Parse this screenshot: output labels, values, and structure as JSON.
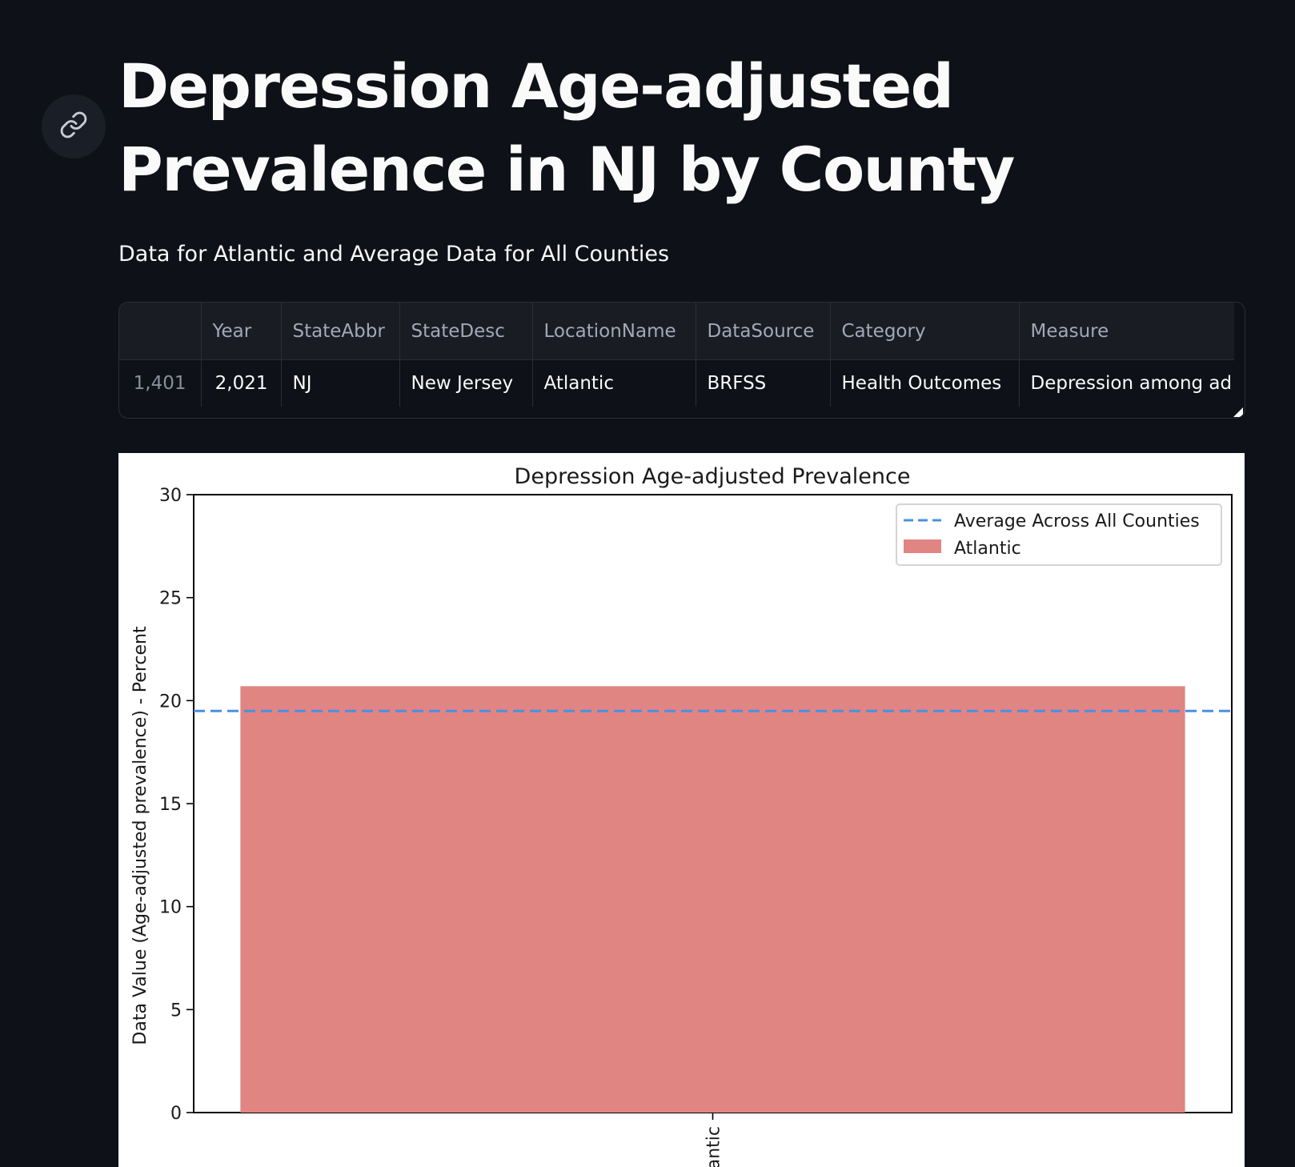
{
  "page": {
    "title": "Depression Age-adjusted Prevalence in NJ by County",
    "subtitle": "Data for Atlantic and Average Data for All Counties",
    "link_icon": "link-icon"
  },
  "table": {
    "columns": [
      "",
      "Year",
      "StateAbbr",
      "StateDesc",
      "LocationName",
      "DataSource",
      "Category",
      "Measure"
    ],
    "rows": [
      [
        "1,401",
        "2,021",
        "NJ",
        "New Jersey",
        "Atlantic",
        "BRFSS",
        "Health Outcomes",
        "Depression among ad"
      ]
    ]
  },
  "chart_data": {
    "type": "bar",
    "title": "Depression Age-adjusted Prevalence",
    "xlabel": "",
    "ylabel": "Data Value (Age-adjusted prevalence) - Percent",
    "categories": [
      "Atlantic"
    ],
    "visible_category_label": "antic",
    "series": [
      {
        "name": "Atlantic",
        "values": [
          20.7
        ],
        "color": "#e08582"
      }
    ],
    "reference_lines": [
      {
        "name": "Average Across All Counties",
        "value": 19.5,
        "style": "dashed",
        "color": "#4a90e2"
      }
    ],
    "ylim": [
      0,
      30
    ],
    "yticks": [
      "0",
      "5",
      "10",
      "15",
      "20",
      "25",
      "30"
    ],
    "legend": [
      "Average Across All Counties",
      "Atlantic"
    ],
    "legend_position": "top-right",
    "grid": false
  }
}
